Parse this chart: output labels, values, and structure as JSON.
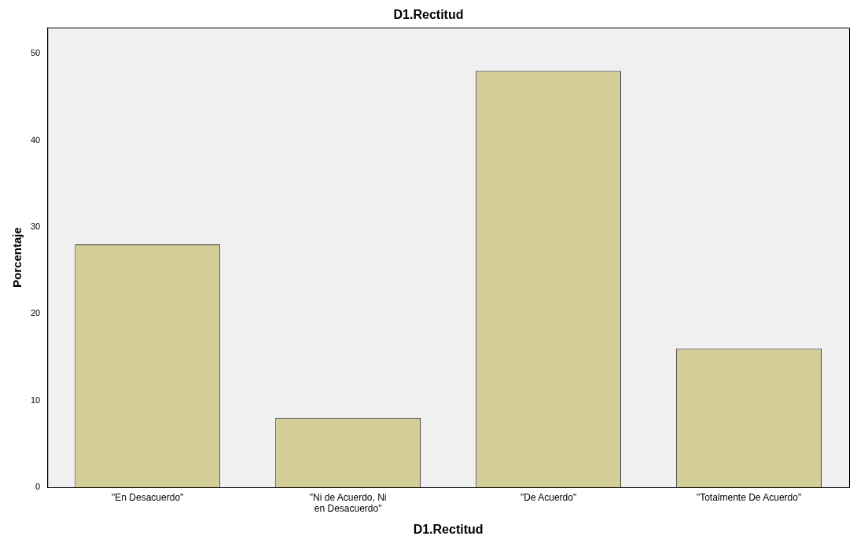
{
  "chart_data": {
    "type": "bar",
    "title": "D1.Rectitud",
    "xlabel": "D1.Rectitud",
    "ylabel": "Porcentaje",
    "categories": [
      "\"En Desacuerdo\"",
      "\"Ni de Acuerdo, Ni en Desacuerdo\"",
      "\"De Acuerdo\"",
      "\"Totalmente De Acuerdo\""
    ],
    "values": [
      28,
      8,
      48,
      16
    ],
    "color": "#d3ce97",
    "ylim": [
      0,
      53
    ],
    "yticks": [
      0,
      10,
      20,
      30,
      40,
      50
    ],
    "grid": false,
    "legend": false
  }
}
